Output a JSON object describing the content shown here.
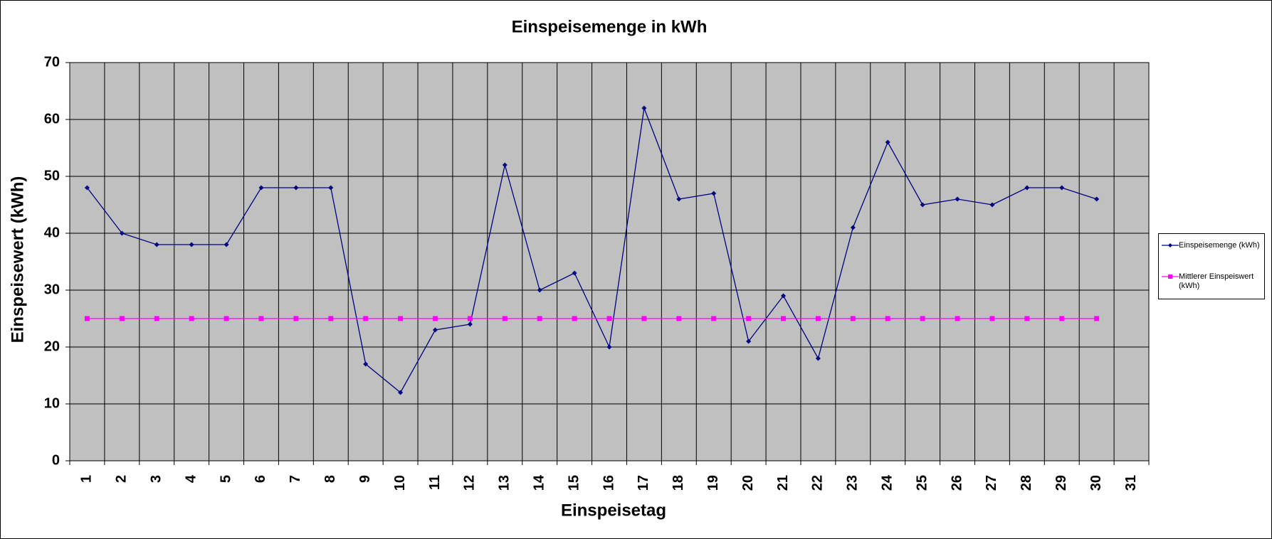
{
  "chart_data": {
    "type": "line",
    "title": "Einspeisemenge in kWh",
    "x_label": "Einspeisetag",
    "y_label": "Einspeisewert  (kWh)",
    "categories": [
      "1",
      "2",
      "3",
      "4",
      "5",
      "6",
      "7",
      "8",
      "9",
      "10",
      "11",
      "12",
      "13",
      "14",
      "15",
      "16",
      "17",
      "18",
      "19",
      "20",
      "21",
      "22",
      "23",
      "24",
      "25",
      "26",
      "27",
      "28",
      "29",
      "30",
      "31"
    ],
    "series": [
      {
        "name": "Einspeisemenge (kWh)",
        "color": "#000080",
        "marker": "diamond",
        "values": [
          48,
          40,
          38,
          38,
          38,
          48,
          48,
          48,
          17,
          12,
          23,
          24,
          52,
          30,
          33,
          20,
          62,
          46,
          47,
          21,
          29,
          18,
          41,
          56,
          45,
          46,
          45,
          48,
          48,
          46,
          null
        ]
      },
      {
        "name": "Mittlerer Einspeiswert (kWh)",
        "color": "#ff00ff",
        "marker": "square",
        "values": [
          25,
          25,
          25,
          25,
          25,
          25,
          25,
          25,
          25,
          25,
          25,
          25,
          25,
          25,
          25,
          25,
          25,
          25,
          25,
          25,
          25,
          25,
          25,
          25,
          25,
          25,
          25,
          25,
          25,
          25,
          null
        ]
      }
    ],
    "ylim": [
      0,
      70
    ],
    "yticks": [
      0,
      10,
      20,
      30,
      40,
      50,
      60,
      70
    ],
    "grid": true,
    "plot_background": "#c0c0c0",
    "legend_position": "right"
  }
}
